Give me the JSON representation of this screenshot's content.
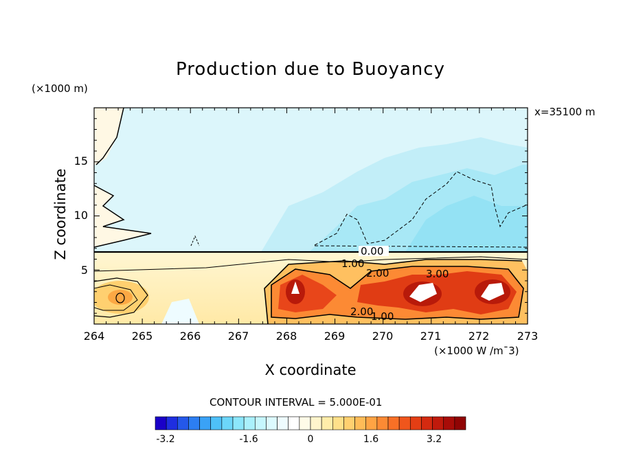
{
  "title": "Production due to Buoyancy",
  "y_unit": "(×1000 m)",
  "x_unit": "(×1000 W /m¯3)",
  "position_label": "x=35100 m",
  "contour_interval": "CONTOUR INTERVAL = 5.000E-01",
  "chart_data": {
    "type": "heatmap",
    "title": "Production due to Buoyancy",
    "xlabel": "X coordinate",
    "ylabel": "Z coordinate",
    "xlim": [
      264,
      273
    ],
    "ylim": [
      0,
      20
    ],
    "x_ticks": [
      "264",
      "265",
      "266",
      "267",
      "268",
      "269",
      "270",
      "271",
      "272",
      "273"
    ],
    "y_ticks": [
      "5",
      "10",
      "15"
    ],
    "contour_labels": [
      "0.00",
      "1.00",
      "2.00",
      "3.00",
      "2.00",
      "1.00"
    ],
    "colorbar": {
      "range": [
        -4.0,
        4.0
      ],
      "tick_labels": [
        "-3.2",
        "-1.6",
        "0",
        "1.6",
        "3.2"
      ],
      "colors": [
        "#1a00c8",
        "#1e2ee0",
        "#2458ea",
        "#2c7ef2",
        "#3aa2f6",
        "#4ec0f8",
        "#6cd6fa",
        "#8ce6fb",
        "#aaf0fc",
        "#c6f6fd",
        "#dcfafe",
        "#eefcff",
        "#ffffff",
        "#fffbe8",
        "#fff5cc",
        "#ffedaa",
        "#ffe08a",
        "#ffd070",
        "#ffbc58",
        "#ffa444",
        "#fc8a34",
        "#f87026",
        "#f0561c",
        "#e43e14",
        "#d42a10",
        "#c01a0c",
        "#a80c08",
        "#900404"
      ]
    },
    "hot_spots": [
      {
        "x": 264.4,
        "z": 2.3,
        "value": 1.8
      },
      {
        "x": 268.2,
        "z": 3.0,
        "value": 3.6
      },
      {
        "x": 269.9,
        "z": 3.2,
        "value": 3.0
      },
      {
        "x": 271.0,
        "z": 2.8,
        "value": 4.0
      },
      {
        "x": 272.1,
        "z": 3.0,
        "value": 4.0
      }
    ]
  }
}
